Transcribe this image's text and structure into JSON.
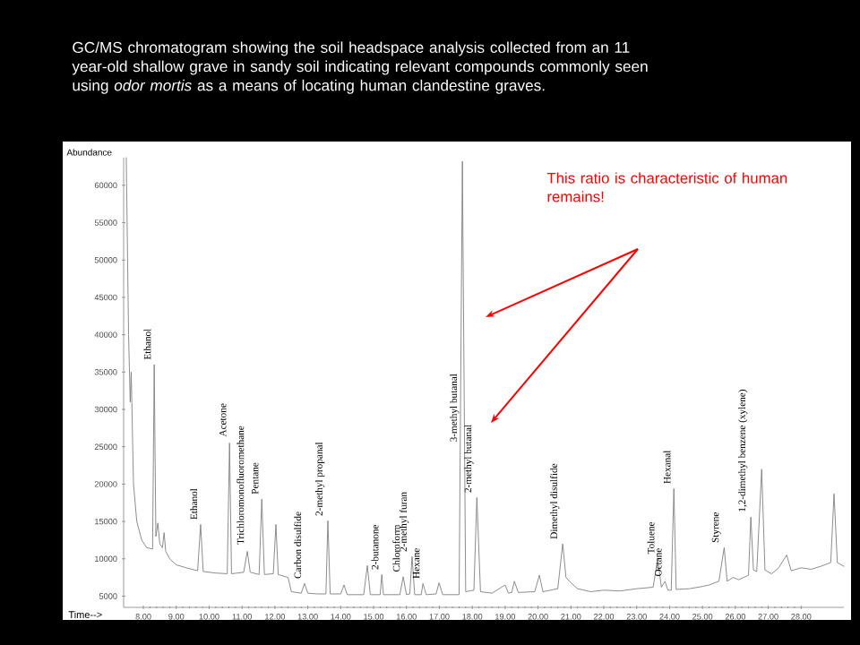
{
  "chart_data": {
    "type": "line",
    "title": "GC/MS chromatogram  showing the soil headspace analysis collected from an 11 year-old shallow grave in sandy soil indicating relevant compounds  commonly  seen using *odor mortis* as a means  of locating human  clandestine graves.",
    "ylabel": "Abundance",
    "xlabel": "Time-->",
    "xlim": [
      7.4,
      29.3
    ],
    "ylim": [
      3500,
      63700
    ],
    "xticks": [
      {
        "value": 8,
        "label": "8.00"
      },
      {
        "value": 9,
        "label": "9.00"
      },
      {
        "value": 10,
        "label": "10.00"
      },
      {
        "value": 11,
        "label": "11.00"
      },
      {
        "value": 12,
        "label": "12.00"
      },
      {
        "value": 13,
        "label": "13.00"
      },
      {
        "value": 14,
        "label": "14.00"
      },
      {
        "value": 15,
        "label": "15.00"
      },
      {
        "value": 16,
        "label": "16.00"
      },
      {
        "value": 17,
        "label": "17.00"
      },
      {
        "value": 18,
        "label": "18.00"
      },
      {
        "value": 19,
        "label": "19.00"
      },
      {
        "value": 20,
        "label": "20.00"
      },
      {
        "value": 21,
        "label": "21.00"
      },
      {
        "value": 22,
        "label": "22.00"
      },
      {
        "value": 23,
        "label": "23.00"
      },
      {
        "value": 24,
        "label": "24.00"
      },
      {
        "value": 25,
        "label": "25.00"
      },
      {
        "value": 26,
        "label": "26.00"
      },
      {
        "value": 27,
        "label": "27.00"
      },
      {
        "value": 28,
        "label": "28.00"
      }
    ],
    "yticks": [
      5000,
      10000,
      15000,
      20000,
      25000,
      30000,
      35000,
      40000,
      45000,
      50000,
      55000,
      60000
    ],
    "series": [
      {
        "color": "#808080",
        "x": [
          7.48,
          7.55,
          7.6,
          7.63,
          7.7,
          7.8,
          7.95,
          8.1,
          8.28,
          8.33,
          8.38,
          8.44,
          8.5,
          8.58,
          8.63,
          8.68,
          8.8,
          9.0,
          9.3,
          9.65,
          9.74,
          9.82,
          10.2,
          10.55,
          10.62,
          10.68,
          11.05,
          11.16,
          11.25,
          11.52,
          11.6,
          11.68,
          11.95,
          12.03,
          12.1,
          12.4,
          12.5,
          12.8,
          12.9,
          13.0,
          13.3,
          13.55,
          13.61,
          13.68,
          14.0,
          14.1,
          14.2,
          14.7,
          14.81,
          14.9,
          15.2,
          15.25,
          15.3,
          15.8,
          15.9,
          16.0,
          16.1,
          16.17,
          16.25,
          16.45,
          16.5,
          16.6,
          16.9,
          16.99,
          17.1,
          17.6,
          17.7,
          17.8,
          18.05,
          18.14,
          18.25,
          18.6,
          19.0,
          19.1,
          19.2,
          19.28,
          19.4,
          19.9,
          20.04,
          20.15,
          20.6,
          20.75,
          20.85,
          21.0,
          21.2,
          21.6,
          22.0,
          22.5,
          23.0,
          23.5,
          23.64,
          23.75,
          23.86,
          23.95,
          24.05,
          24.13,
          24.2,
          24.6,
          25.0,
          25.2,
          25.5,
          25.66,
          25.75,
          25.93,
          26.1,
          26.4,
          26.47,
          26.55,
          26.65,
          26.8,
          26.9,
          27.1,
          27.3,
          27.56,
          27.7,
          28.0,
          28.3,
          28.6,
          28.9,
          29.0,
          29.1,
          29.3
        ],
        "values": [
          63700,
          40000,
          31000,
          35000,
          20000,
          15000,
          12500,
          11500,
          11300,
          36000,
          13000,
          14800,
          12000,
          11500,
          13500,
          11000,
          10000,
          9200,
          8800,
          8400,
          14600,
          8300,
          8100,
          8000,
          25500,
          8000,
          8200,
          11000,
          8200,
          7900,
          18000,
          7900,
          8000,
          14600,
          7900,
          7500,
          5600,
          5400,
          6700,
          5400,
          5300,
          5300,
          15100,
          5300,
          5300,
          6500,
          5200,
          5200,
          9100,
          5200,
          5200,
          7900,
          5200,
          5200,
          7600,
          5200,
          5300,
          10300,
          5200,
          5200,
          6700,
          5200,
          5300,
          6800,
          5200,
          5200,
          63200,
          5600,
          5800,
          18200,
          5600,
          5400,
          6500,
          5400,
          5500,
          7000,
          5500,
          5600,
          7800,
          5600,
          6000,
          12000,
          7500,
          6800,
          6000,
          5600,
          5800,
          5700,
          6000,
          6200,
          10000,
          6200,
          7000,
          5800,
          5800,
          19400,
          5900,
          6000,
          6300,
          6500,
          7000,
          11500,
          7000,
          7500,
          7200,
          7800,
          15600,
          8500,
          8300,
          22000,
          8500,
          8000,
          8700,
          10500,
          8400,
          8800,
          8600,
          9000,
          9500,
          18700,
          9500,
          9000
        ]
      }
    ],
    "annotations": [
      {
        "text": "Ethanol",
        "x": 8.33,
        "y": 36000
      },
      {
        "text": "Ethanol",
        "x": 9.74,
        "y": 14600
      },
      {
        "text": "Acetone",
        "x": 10.62,
        "y": 25700
      },
      {
        "text": "Trichloromonofluoromethane",
        "x": 11.16,
        "y": 11250
      },
      {
        "text": "Pentane",
        "x": 11.6,
        "y": 18000
      },
      {
        "text": "Carbon disulfide",
        "x": 12.9,
        "y": 6700
      },
      {
        "text": "2-methyl propanal",
        "x": 13.61,
        "y": 15100
      },
      {
        "text": "2-butanone",
        "x": 15.25,
        "y": 7900
      },
      {
        "text": "Chloroform",
        "x": 15.9,
        "y": 7600
      },
      {
        "text": "2-methyl furan",
        "x": 16.17,
        "y": 10300
      },
      {
        "text": "Hexane",
        "x": 16.5,
        "y": 6700
      },
      {
        "text": "3-methyl butanal",
        "x": 17.7,
        "y": 25000
      },
      {
        "text": "2-methyl butanal",
        "x": 18.14,
        "y": 18200
      },
      {
        "text": "Dimethyl disulfide",
        "x": 20.75,
        "y": 12000
      },
      {
        "text": "Toluene",
        "x": 23.64,
        "y": 10000
      },
      {
        "text": "Octane",
        "x": 23.86,
        "y": 7000
      },
      {
        "text": "Hexanal",
        "x": 24.13,
        "y": 19400
      },
      {
        "text": "Styrene",
        "x": 25.66,
        "y": 11500
      },
      {
        "text": "1,2-dimethyl benzene (xylene)",
        "x": 26.47,
        "y": 15600
      },
      "This ratio is characteristic of human remains!"
    ]
  }
}
